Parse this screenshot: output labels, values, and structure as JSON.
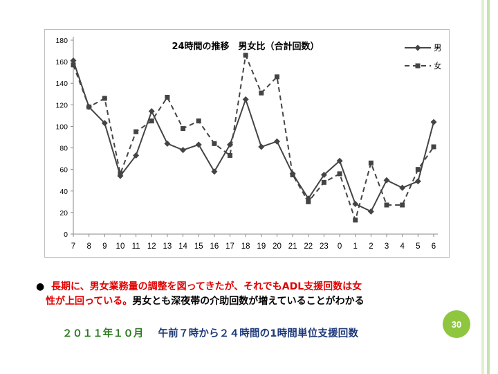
{
  "chart_data": {
    "type": "line",
    "title": "24時間の推移　男女比（合計回数）",
    "categories": [
      "7",
      "8",
      "9",
      "10",
      "11",
      "12",
      "13",
      "14",
      "15",
      "16",
      "17",
      "18",
      "19",
      "20",
      "21",
      "22",
      "23",
      "0",
      "1",
      "2",
      "3",
      "4",
      "5",
      "6"
    ],
    "ylim": [
      0,
      180
    ],
    "yticks": [
      0,
      20,
      40,
      60,
      80,
      100,
      120,
      140,
      160,
      180
    ],
    "grid": false,
    "legend_position": "top-right",
    "series": [
      {
        "name": "男",
        "style": "solid",
        "marker": "diamond",
        "color": "#444444",
        "values": [
          161,
          118,
          103,
          54,
          73,
          114,
          84,
          78,
          83,
          58,
          83,
          125,
          81,
          86,
          56,
          33,
          55,
          68,
          28,
          21,
          50,
          43,
          49,
          104
        ]
      },
      {
        "name": "女",
        "style": "dashed",
        "marker": "square",
        "color": "#444444",
        "values": [
          157,
          118,
          126,
          56,
          95,
          105,
          127,
          98,
          105,
          84,
          73,
          166,
          131,
          146,
          55,
          30,
          48,
          56,
          13,
          66,
          27,
          27,
          60,
          81
        ]
      }
    ]
  },
  "note": {
    "bullet": "●",
    "red_text": "長期に、男女業務量の調整を図ってきたが、それでもADL支援回数は女",
    "red_text_2": "性が上回っている。",
    "black_text": "男女とも深夜帯の介助回数が増えていることがわかる"
  },
  "caption": {
    "date": "２０１１年１０月",
    "description": "午前７時から２４時間の1時間単位支援回数"
  },
  "page_number": "30",
  "colors": {
    "accent_green": "#8ec63f",
    "caption_green": "#2a7a1d",
    "caption_navy": "#1f3a7a",
    "red": "#e00000"
  }
}
